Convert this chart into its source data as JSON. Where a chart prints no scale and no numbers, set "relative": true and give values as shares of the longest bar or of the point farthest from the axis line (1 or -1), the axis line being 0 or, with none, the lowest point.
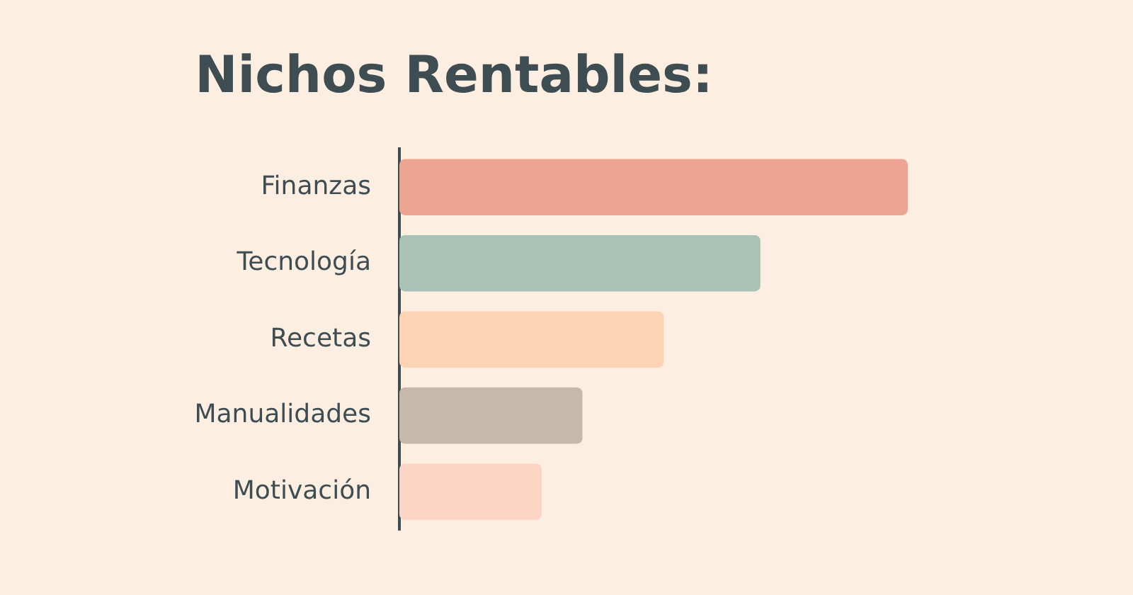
{
  "chart_data": {
    "type": "bar",
    "title": "Nichos Rentables:",
    "orientation": "horizontal",
    "relative": true,
    "categories": [
      "Finanzas",
      "Tecnología",
      "Recetas",
      "Manualidades",
      "Motivación"
    ],
    "values": [
      1,
      0.71,
      0.52,
      0.36,
      0.28
    ],
    "colors": [
      "#eda593",
      "#a8c3b5",
      "#fdd3b5",
      "#c6b8ab",
      "#fdd5c5"
    ],
    "grid": false,
    "legend": false
  }
}
